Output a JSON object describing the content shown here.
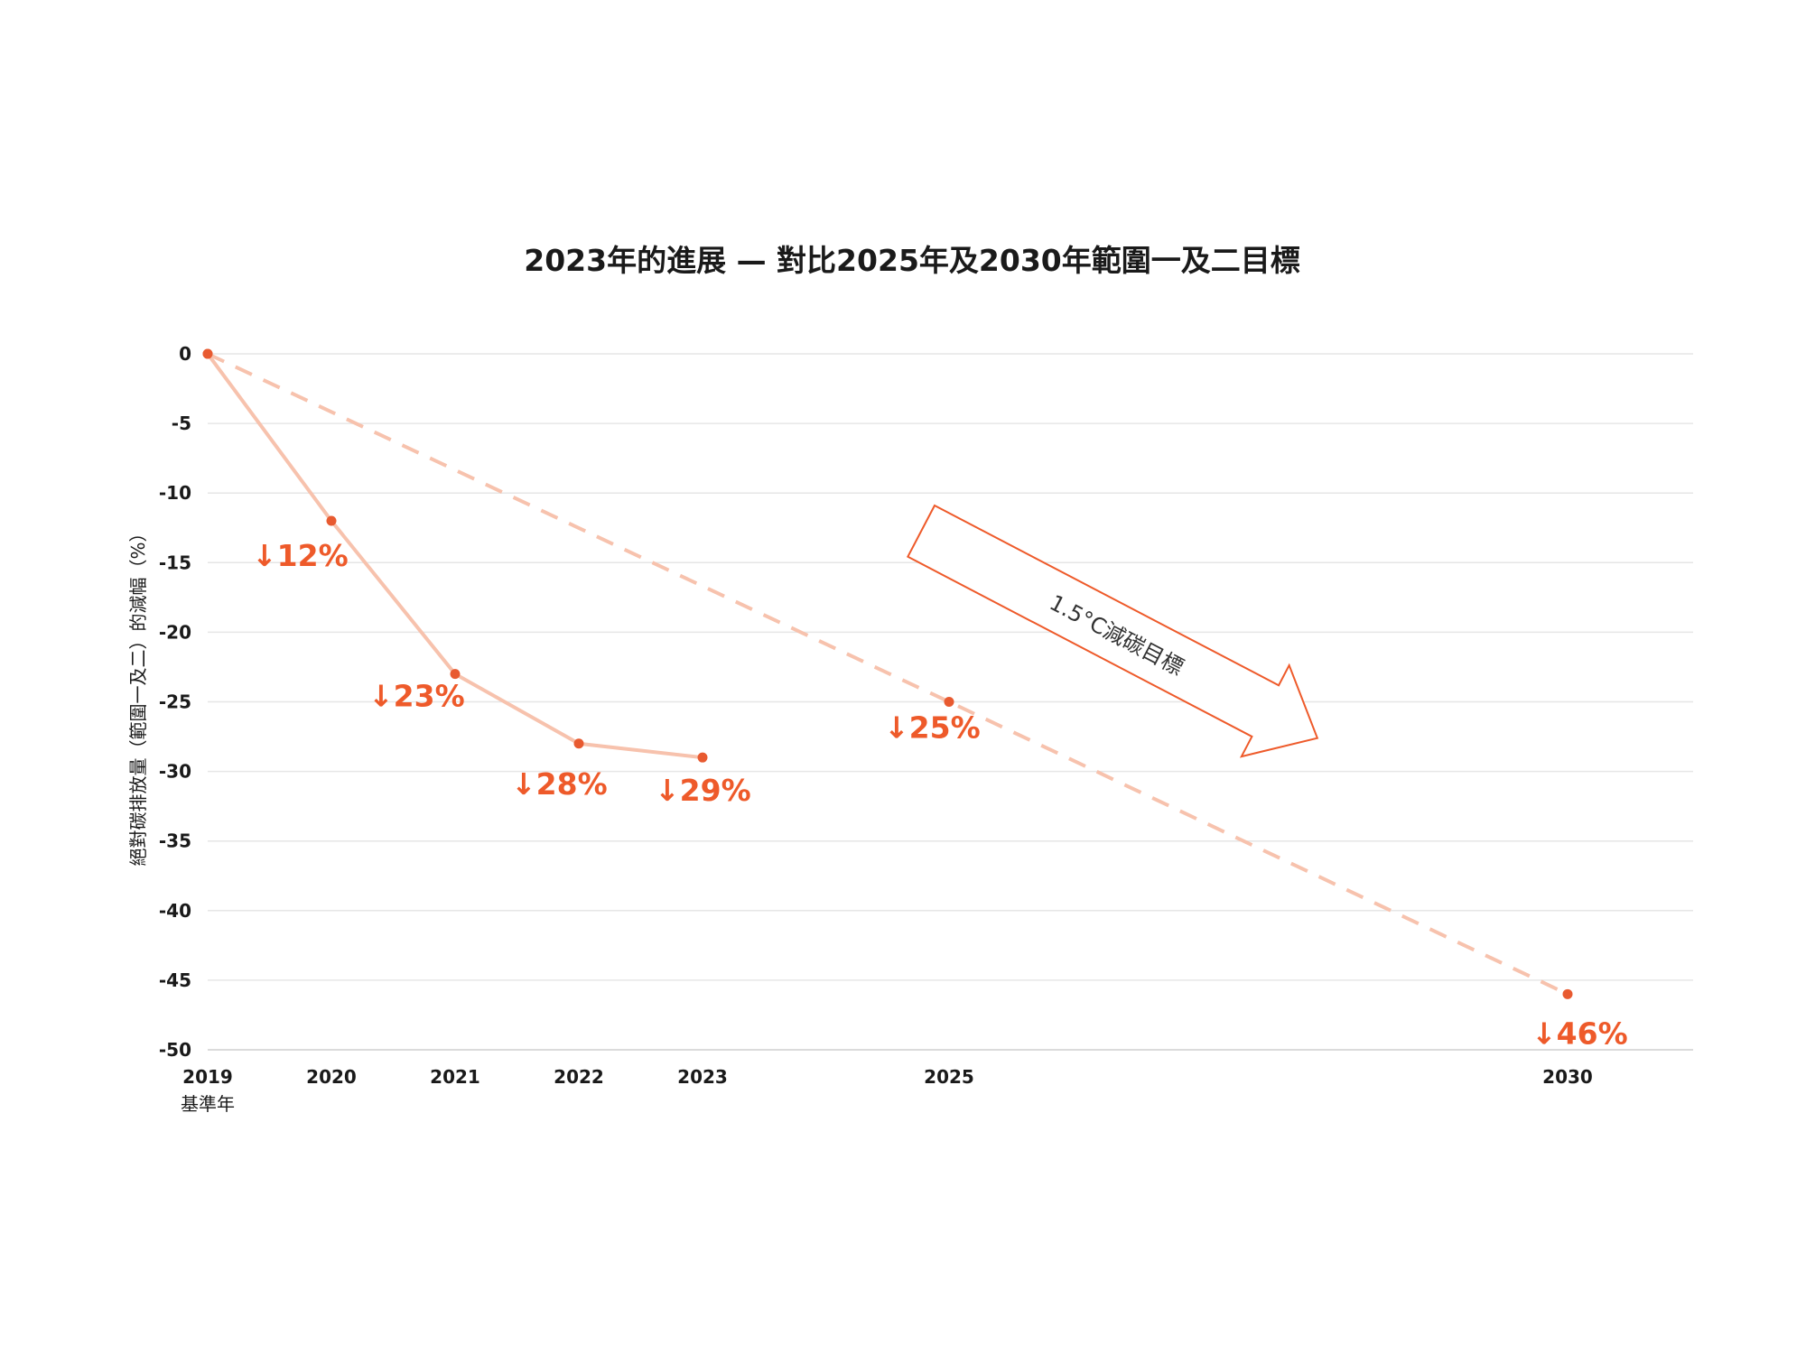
{
  "colors": {
    "actual_line": "#f7c2ad",
    "target_line": "#f7c2ad",
    "point": "#e85a30",
    "label": "#ee5a2a",
    "arrow_stroke": "#ee5a2a"
  },
  "chart_data": {
    "type": "line",
    "title": "2023年的進展 — 對比2025年及2030年範圍一及二目標",
    "xlabel": "",
    "ylabel": "絕對碳排放量（範圍一及二）的減幅（%）",
    "x": [
      "2019",
      "2020",
      "2021",
      "2022",
      "2023",
      "2025",
      "2030"
    ],
    "x_sublabels": {
      "2019": "基準年"
    },
    "ylim": [
      -50,
      0
    ],
    "yticks": [
      0,
      -5,
      -10,
      -15,
      -20,
      -25,
      -30,
      -35,
      -40,
      -45,
      -50
    ],
    "grid": true,
    "series": [
      {
        "style": "solid",
        "x": [
          2019,
          2020,
          2021,
          2022,
          2023
        ],
        "values": [
          0,
          -12,
          -23,
          -28,
          -29
        ],
        "labels": [
          "",
          "↓12%",
          "↓23%",
          "↓28%",
          "↓29%"
        ]
      },
      {
        "style": "dashed",
        "x": [
          2019,
          2025,
          2030
        ],
        "values": [
          0,
          -25,
          -46
        ],
        "labels": [
          "",
          "↓25%",
          "↓46%"
        ]
      }
    ],
    "annotations": [
      {
        "text": "1.5°C減碳目標",
        "kind": "arrow"
      }
    ]
  }
}
